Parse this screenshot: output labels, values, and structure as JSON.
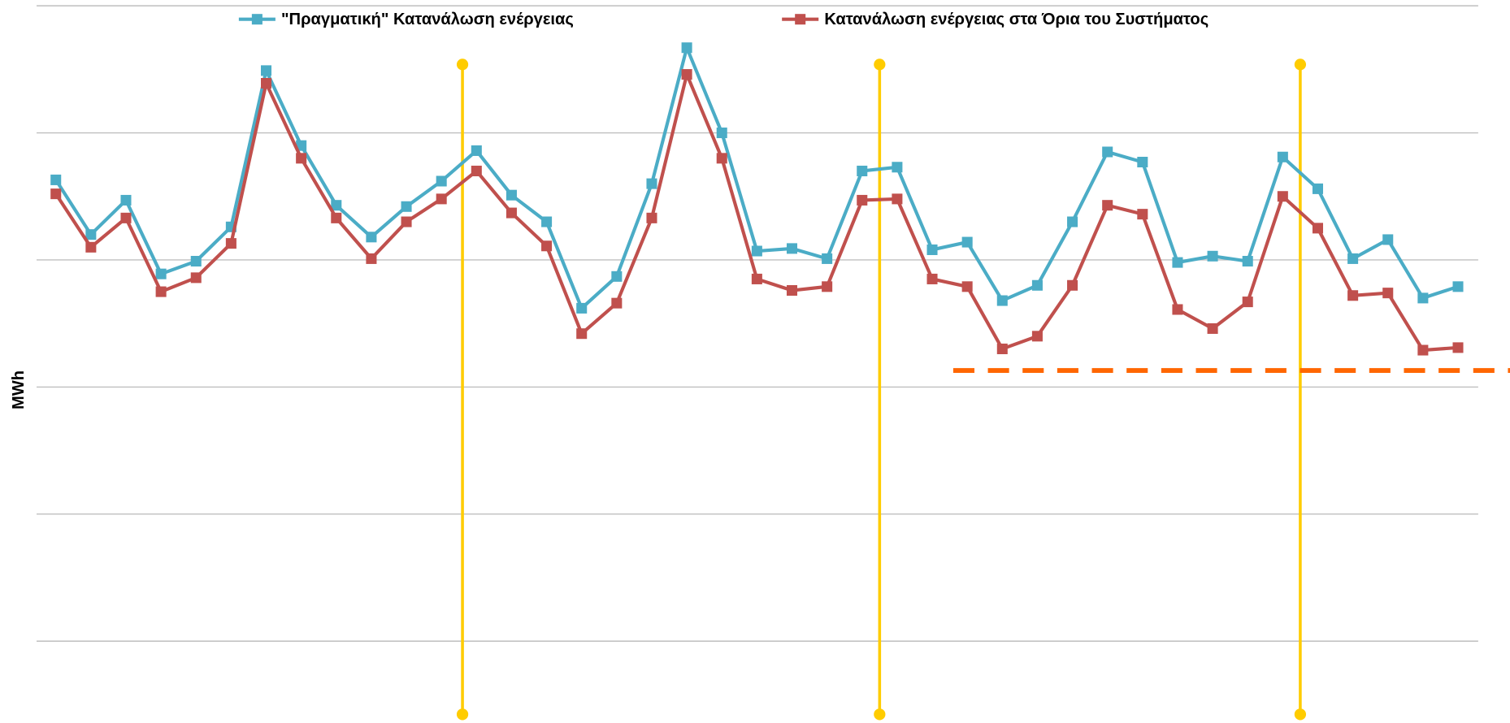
{
  "chart_data": {
    "type": "line",
    "y_label": "MWh",
    "categories": [
      null,
      null,
      null,
      null,
      null,
      null,
      null,
      null,
      null,
      null,
      null,
      null,
      null,
      null,
      null,
      null,
      null,
      null,
      null,
      null,
      null,
      null,
      null,
      null,
      null,
      null,
      null,
      null,
      null,
      null,
      null,
      null,
      null,
      null,
      null,
      null,
      null,
      null,
      null,
      null,
      null
    ],
    "series": [
      {
        "name": "\"Πραγματική\" Κατανάλωση ενέργειας",
        "color": "#4bacc6",
        "values": [
          3.63,
          3.2,
          3.47,
          2.89,
          2.99,
          3.26,
          4.49,
          3.9,
          3.43,
          3.18,
          3.42,
          3.62,
          3.86,
          3.51,
          3.3,
          2.62,
          2.87,
          3.6,
          4.67,
          4.0,
          3.07,
          3.09,
          3.01,
          3.7,
          3.73,
          3.08,
          3.14,
          2.68,
          2.8,
          3.3,
          3.85,
          3.77,
          2.98,
          3.03,
          2.99,
          3.81,
          3.56,
          3.01,
          3.16,
          2.7,
          2.79
        ]
      },
      {
        "name": "Κατανάλωση ενέργειας στα Όρια του Συστήματος",
        "color": "#c0504d",
        "values": [
          3.52,
          3.1,
          3.33,
          2.75,
          2.86,
          3.13,
          4.39,
          3.8,
          3.33,
          3.01,
          3.3,
          3.48,
          3.7,
          3.37,
          3.11,
          2.42,
          2.66,
          3.33,
          4.46,
          3.8,
          2.85,
          2.76,
          2.79,
          3.47,
          3.48,
          2.85,
          2.79,
          2.3,
          2.4,
          2.8,
          3.43,
          3.36,
          2.61,
          2.46,
          2.67,
          3.5,
          3.25,
          2.72,
          2.74,
          2.29,
          2.31
        ]
      }
    ],
    "ylim": [
      0,
      5
    ],
    "yticks": [
      0,
      1,
      2,
      3,
      4,
      5
    ],
    "grid": true,
    "vertical_lines": {
      "color": "#ffcc00",
      "x": [
        11.6,
        23.5,
        35.5
      ]
    },
    "threshold_line": {
      "color": "#ff6600",
      "value": 2.13,
      "from_x": 25.6
    },
    "legend": "top"
  }
}
